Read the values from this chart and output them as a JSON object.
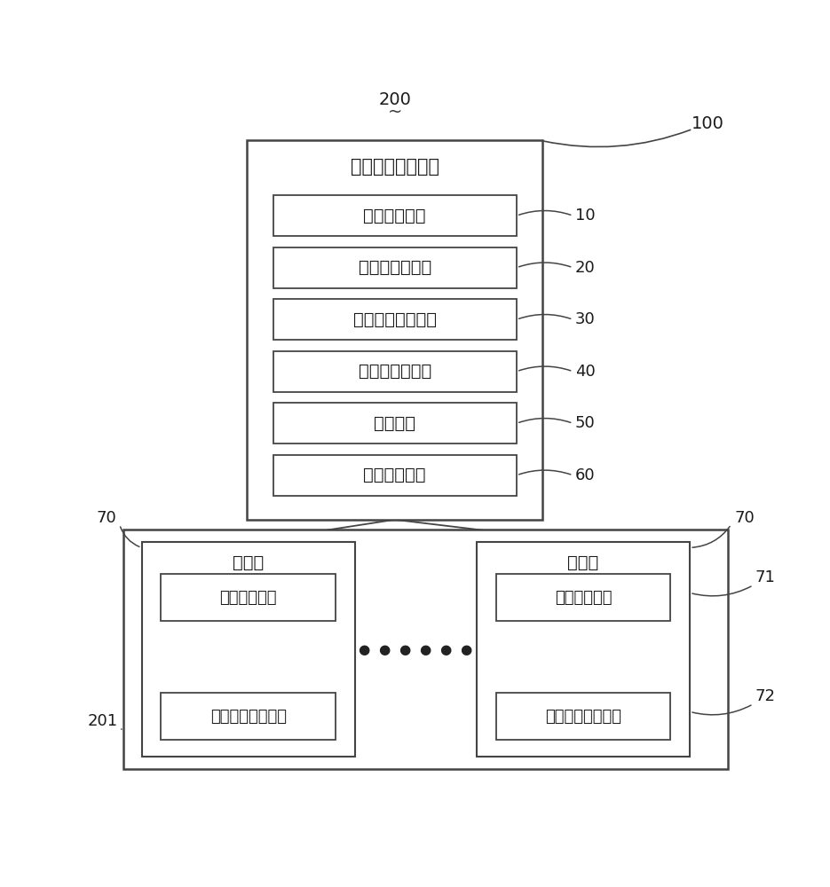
{
  "bg_color": "#ffffff",
  "line_color": "#444444",
  "title_device": "割草机队管理装置",
  "label_200": "200",
  "label_100": "100",
  "modules": [
    {
      "label": "地图加载模块",
      "ref": "10"
    },
    {
      "label": "控制端通信模块",
      "ref": "20"
    },
    {
      "label": "作业区域分配模块",
      "ref": "30"
    },
    {
      "label": "控制端监控模块",
      "ref": "40"
    },
    {
      "label": "交互模块",
      "ref": "50"
    },
    {
      "label": "控制端数据库",
      "ref": "60"
    }
  ],
  "mower_title": "割草机",
  "mower_sub1": "车载通信模块",
  "mower_sub2": "车载定位导航模块",
  "label_70_left": "70",
  "label_70_right": "70",
  "label_71": "71",
  "label_72": "72",
  "label_201": "201",
  "font_size_title": 15,
  "font_size_module": 14,
  "font_size_ref": 13,
  "font_size_sub": 13,
  "font_size_mower_title": 14
}
